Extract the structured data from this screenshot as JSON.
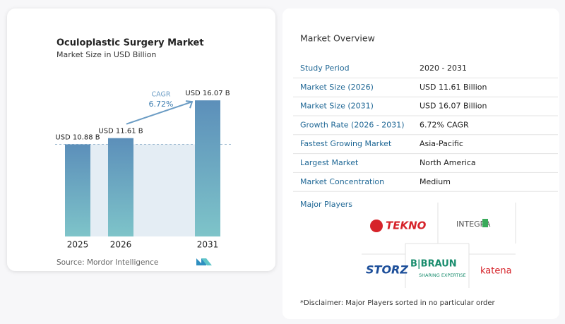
{
  "chart_data": {
    "type": "bar",
    "title": "Oculoplastic Surgery Market",
    "subtitle": "Market Size in USD Billion",
    "categories": [
      "2025",
      "2026",
      "2031"
    ],
    "values": [
      10.88,
      11.61,
      16.07
    ],
    "value_labels": [
      "USD 10.88 B",
      "USD 11.61 B",
      "USD 16.07 B"
    ],
    "ylim": [
      0,
      19
    ],
    "annotation_title": "CAGR",
    "annotation_value": "6.72%",
    "source": "Source:  Mordor Intelligence"
  },
  "overview": {
    "title": "Market Overview",
    "rows": [
      [
        "Study Period",
        "2020 - 2031"
      ],
      [
        "Market Size (2026)",
        "USD 11.61 Billion"
      ],
      [
        "Market Size (2031)",
        "USD 16.07 Billion"
      ],
      [
        "Growth Rate (2026 - 2031)",
        "6.72% CAGR"
      ],
      [
        "Fastest Growing Market",
        "Asia-Pacific"
      ],
      [
        "Largest Market",
        "North America"
      ],
      [
        "Market Concentration",
        "Medium"
      ]
    ]
  },
  "players": {
    "title": "Major Players",
    "logos": [
      "TEKNO",
      "INTEGRA",
      "B|BRAUN",
      "SHARING EXPERTISE",
      "STORZ",
      "katena"
    ]
  },
  "disclaimer": "*Disclaimer: Major Players sorted in no particular order"
}
